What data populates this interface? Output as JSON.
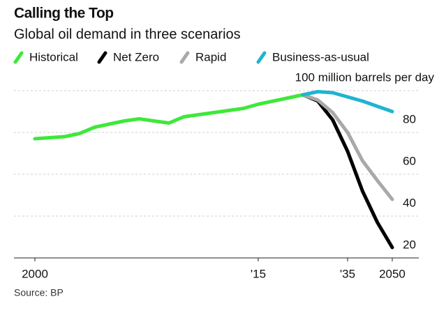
{
  "chart_data": {
    "type": "line",
    "title": "Calling the Top",
    "subtitle": "Global oil demand in three scenarios",
    "source": "Source: BP",
    "categories": [
      "2000",
      null,
      null,
      null,
      null,
      null,
      null,
      null,
      null,
      null,
      null,
      null,
      null,
      null,
      null,
      "'15",
      null,
      null,
      null,
      null,
      null,
      "'35",
      null,
      null,
      "2050"
    ],
    "series": [
      {
        "name": "Historical",
        "color": "#3ee83a",
        "values": [
          77,
          77.5,
          78,
          79.5,
          82.5,
          84,
          85.5,
          86.5,
          85.5,
          84.5,
          87.5,
          88.5,
          89.5,
          90.5,
          91.5,
          93.5,
          95,
          96.5,
          98,
          null,
          null,
          null,
          null,
          null,
          null
        ]
      },
      {
        "name": "Net Zero",
        "color": "#000000",
        "values": [
          null,
          null,
          null,
          null,
          null,
          null,
          null,
          null,
          null,
          null,
          null,
          null,
          null,
          null,
          null,
          null,
          null,
          null,
          98,
          95,
          86,
          71,
          52,
          37,
          25
        ]
      },
      {
        "name": "Rapid",
        "color": "#a9a9a9",
        "values": [
          null,
          null,
          null,
          null,
          null,
          null,
          null,
          null,
          null,
          null,
          null,
          null,
          null,
          null,
          null,
          null,
          null,
          null,
          98,
          95.5,
          89.5,
          80,
          66.5,
          57,
          48
        ]
      },
      {
        "name": "Business-as-usual",
        "color": "#1fb4d2",
        "values": [
          null,
          null,
          null,
          null,
          null,
          null,
          null,
          null,
          null,
          null,
          null,
          null,
          null,
          null,
          null,
          null,
          null,
          null,
          98,
          99.5,
          99,
          97,
          95,
          92.5,
          90
        ]
      }
    ],
    "ylim": [
      20,
      100
    ],
    "yticks": [
      20,
      40,
      60,
      80,
      {
        "value": 100,
        "label": "100 million barrels per day"
      }
    ],
    "grid": true
  }
}
